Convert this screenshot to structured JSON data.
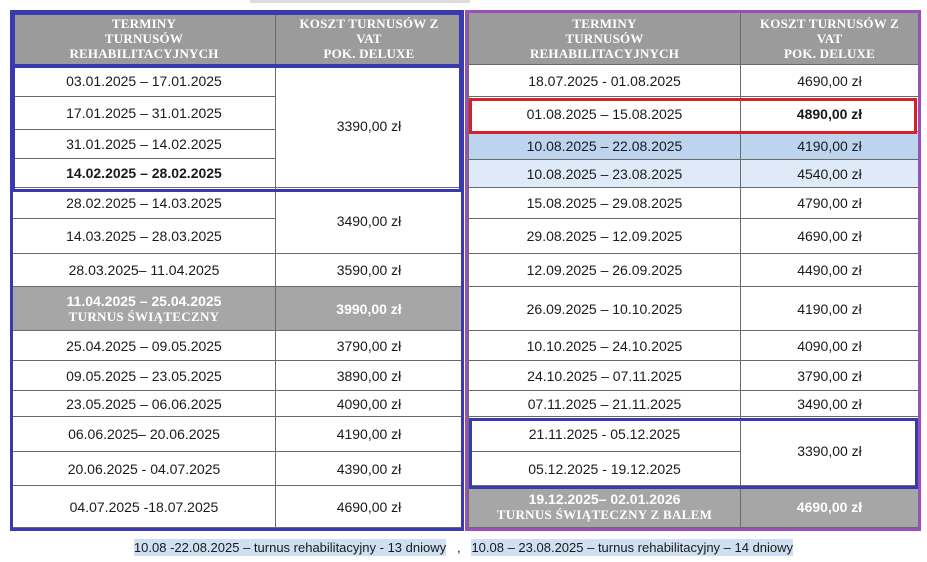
{
  "header": {
    "terms_line1": "TERMINY",
    "terms_line2": "TURNUSÓW",
    "terms_line3": "REHABILITACYJNYCH",
    "cost_line1": "KOSZT TURNUSÓW Z",
    "cost_line2": "VAT",
    "cost_line3": "POK. DELUXE"
  },
  "left": {
    "rows": [
      {
        "date": "03.01.2025 – 17.01.2025"
      },
      {
        "date": "17.01.2025 – 31.01.2025"
      },
      {
        "date": "31.01.2025 – 14.02.2025"
      },
      {
        "date": "14.02.2025 – 28.02.2025"
      },
      {
        "date": "28.02.2025 – 14.03.2025"
      },
      {
        "date": "14.03.2025 – 28.03.2025"
      },
      {
        "date": "28.03.2025– 11.04.2025",
        "price": "3590,00 zł"
      },
      {
        "date": "11.04.2025 – 25.04.2025",
        "sub": "TURNUS ŚWIĄTECZNY",
        "price": "3990,00 zł"
      },
      {
        "date": "25.04.2025 – 09.05.2025",
        "price": "3790,00 zł"
      },
      {
        "date": "09.05.2025 – 23.05.2025",
        "price": "3890,00 zł"
      },
      {
        "date": "23.05.2025 – 06.06.2025",
        "price": "4090,00 zł"
      },
      {
        "date": "06.06.2025– 20.06.2025",
        "price": "4190,00 zł"
      },
      {
        "date": "20.06.2025 - 04.07.2025",
        "price": "4390,00 zł"
      },
      {
        "date": "04.07.2025 -18.07.2025",
        "price": "4690,00 zł"
      }
    ],
    "price_group1": "3390,00 zł",
    "price_group2": "3490,00 zł"
  },
  "right": {
    "rows": [
      {
        "date": "18.07.2025 - 01.08.2025",
        "price": "4690,00 zł"
      },
      {
        "date": "01.08.2025 – 15.08.2025",
        "price": "4890,00 zł"
      },
      {
        "date": "10.08.2025 – 22.08.2025",
        "price": "4190,00 zł"
      },
      {
        "date": "10.08.2025 – 23.08.2025",
        "price": "4540,00 zł"
      },
      {
        "date": "15.08.2025 – 29.08.2025",
        "price": "4790,00 zł"
      },
      {
        "date": "29.08.2025 – 12.09.2025",
        "price": "4690,00 zł"
      },
      {
        "date": "12.09.2025 – 26.09.2025",
        "price": "4490,00 zł"
      },
      {
        "date": "26.09.2025 – 10.10.2025",
        "price": "4190,00 zł"
      },
      {
        "date": "10.10.2025 – 24.10.2025",
        "price": "4090,00 zł"
      },
      {
        "date": "24.10.2025 – 07.11.2025",
        "price": "3790,00 zł"
      },
      {
        "date": "07.11.2025 – 21.11.2025",
        "price": "3490,00 zł"
      },
      {
        "date": "21.11.2025 - 05.12.2025"
      },
      {
        "date": "05.12.2025 - 19.12.2025"
      },
      {
        "date": "19.12.2025– 02.01.2026",
        "sub": "TURNUS ŚWIĄTECZNY Z BALEM",
        "price": "4690,00 zł"
      }
    ],
    "price_group": "3390,00 zł"
  },
  "footnote": {
    "part1": "10.08 -22.08.2025 – turnus rehabilitacyjny - 13 dniowy",
    "separator": ",",
    "part2": "10.08 – 23.08.2025 – turnus rehabilitacyjny – 14 dniowy"
  },
  "colors": {
    "header_gray": "#9b9b9b",
    "highlight_blue": "#bdd4ee",
    "highlight_light_blue": "#deeaf7",
    "frame_blue": "#3a3ab0",
    "frame_purple": "#9b4fb8",
    "frame_red": "#d8202a"
  }
}
